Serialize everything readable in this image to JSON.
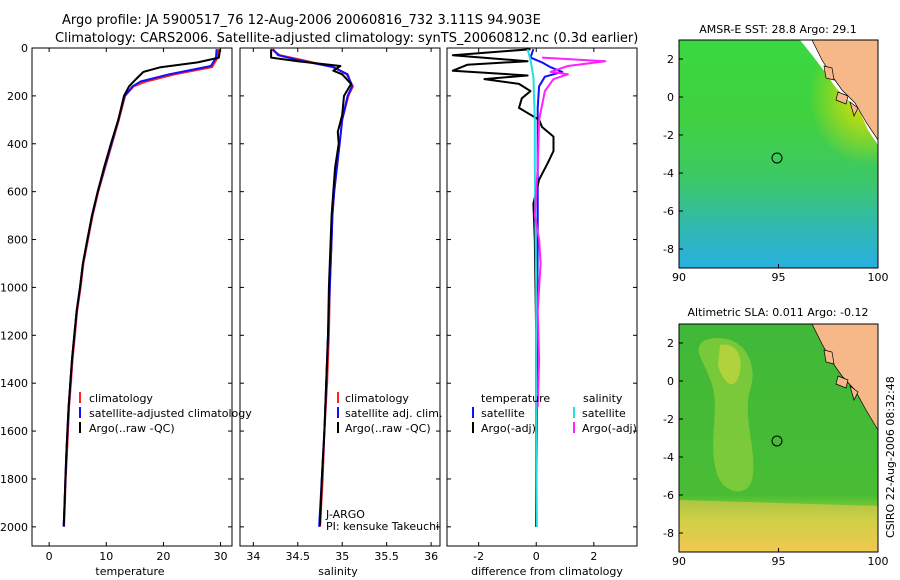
{
  "header": {
    "line1": "Argo profile: JA 5900517_76 12-Aug-2006 20060816_732 3.111S 94.903E",
    "line2": "Climatology: CARS2006. Satellite-adjusted climatology: synTS_20060812.nc (0.3d earlier)"
  },
  "side_label": "CSIRO 22-Aug-2006 08:32:48",
  "chart_data": [
    {
      "id": "temperature",
      "type": "line",
      "xlabel": "temperature",
      "ylabel": "",
      "xlim": [
        -3,
        32
      ],
      "ylim": [
        2080,
        0
      ],
      "xticks": [
        0,
        10,
        20,
        30
      ],
      "yticks": [
        0,
        200,
        400,
        600,
        800,
        1000,
        1200,
        1400,
        1600,
        1800,
        2000
      ],
      "legend": {
        "placement": "lower-right",
        "entries": [
          "climatology",
          "satellite-adjusted climatology",
          "Argo(..raw -QC)"
        ]
      },
      "series": [
        {
          "name": "climatology",
          "color": "#ff2020",
          "points": [
            [
              29.6,
              5
            ],
            [
              29.5,
              40
            ],
            [
              28.5,
              80
            ],
            [
              22,
              110
            ],
            [
              17,
              140
            ],
            [
              14.8,
              160
            ],
            [
              13.3,
              200
            ],
            [
              12.2,
              300
            ],
            [
              11,
              400
            ],
            [
              9.8,
              500
            ],
            [
              8.6,
              600
            ],
            [
              7.6,
              700
            ],
            [
              6.8,
              800
            ],
            [
              6,
              900
            ],
            [
              5.5,
              1000
            ],
            [
              4.9,
              1100
            ],
            [
              4.5,
              1200
            ],
            [
              4.1,
              1300
            ],
            [
              3.8,
              1400
            ],
            [
              3.5,
              1500
            ],
            [
              3.3,
              1600
            ],
            [
              3.1,
              1700
            ],
            [
              2.9,
              1800
            ],
            [
              2.75,
              1900
            ],
            [
              2.6,
              2000
            ]
          ]
        },
        {
          "name": "satellite-adjusted climatology",
          "color": "#1010ff",
          "points": [
            [
              29.3,
              5
            ],
            [
              29.2,
              40
            ],
            [
              28.3,
              75
            ],
            [
              21,
              110
            ],
            [
              16,
              140
            ],
            [
              14.6,
              160
            ],
            [
              13.2,
              200
            ],
            [
              12.1,
              300
            ],
            [
              10.9,
              400
            ],
            [
              9.7,
              500
            ],
            [
              8.5,
              600
            ],
            [
              7.5,
              700
            ],
            [
              6.7,
              800
            ],
            [
              5.9,
              900
            ],
            [
              5.4,
              1000
            ],
            [
              4.8,
              1100
            ],
            [
              4.4,
              1200
            ],
            [
              4,
              1300
            ],
            [
              3.7,
              1400
            ],
            [
              3.4,
              1500
            ],
            [
              3.2,
              1600
            ],
            [
              3,
              1700
            ],
            [
              2.85,
              1800
            ],
            [
              2.7,
              1900
            ],
            [
              2.55,
              2000
            ]
          ]
        },
        {
          "name": "Argo(..raw -QC)",
          "color": "#000000",
          "points": [
            [
              29.9,
              5
            ],
            [
              29.7,
              40
            ],
            [
              26,
              60
            ],
            [
              19.5,
              80
            ],
            [
              16.5,
              100
            ],
            [
              15.2,
              130
            ],
            [
              14,
              160
            ],
            [
              13.1,
              200
            ],
            [
              12.1,
              300
            ],
            [
              10.8,
              400
            ],
            [
              9.6,
              500
            ],
            [
              8.5,
              600
            ],
            [
              7.5,
              700
            ],
            [
              6.7,
              800
            ],
            [
              5.9,
              900
            ],
            [
              5.4,
              1000
            ],
            [
              4.8,
              1100
            ],
            [
              4.4,
              1200
            ],
            [
              4,
              1300
            ],
            [
              3.7,
              1400
            ],
            [
              3.4,
              1500
            ],
            [
              3.2,
              1600
            ],
            [
              3,
              1700
            ],
            [
              2.85,
              1800
            ],
            [
              2.7,
              1900
            ],
            [
              2.55,
              1995
            ]
          ]
        }
      ]
    },
    {
      "id": "salinity",
      "type": "line",
      "xlabel": "salinity",
      "xlim": [
        33.85,
        36.1
      ],
      "ylim": [
        2080,
        0
      ],
      "xticks": [
        34,
        34.5,
        35,
        35.5,
        36
      ],
      "yticks": [
        0,
        200,
        400,
        600,
        800,
        1000,
        1200,
        1400,
        1600,
        1800,
        2000
      ],
      "legend": {
        "placement": "lower-right",
        "entries": [
          "climatology",
          "satellite adj. clim.",
          "Argo(..raw -QC)"
        ]
      },
      "annotations": [
        "J-ARGO",
        "PI: kensuke Takeuchi"
      ],
      "series": [
        {
          "name": "climatology",
          "color": "#ff2020",
          "points": [
            [
              34.2,
              5
            ],
            [
              34.3,
              30
            ],
            [
              34.55,
              50
            ],
            [
              34.9,
              80
            ],
            [
              35.05,
              110
            ],
            [
              35.12,
              160
            ],
            [
              35.07,
              200
            ],
            [
              35.0,
              300
            ],
            [
              34.97,
              400
            ],
            [
              34.94,
              500
            ],
            [
              34.91,
              600
            ],
            [
              34.89,
              700
            ],
            [
              34.88,
              800
            ],
            [
              34.87,
              900
            ],
            [
              34.86,
              1000
            ],
            [
              34.85,
              1200
            ],
            [
              34.83,
              1400
            ],
            [
              34.8,
              1600
            ],
            [
              34.78,
              1800
            ],
            [
              34.75,
              2000
            ]
          ]
        },
        {
          "name": "satellite adj. clim.",
          "color": "#1010ff",
          "points": [
            [
              34.22,
              5
            ],
            [
              34.28,
              30
            ],
            [
              34.5,
              50
            ],
            [
              34.9,
              80
            ],
            [
              35.06,
              110
            ],
            [
              35.11,
              160
            ],
            [
              35.06,
              200
            ],
            [
              35.0,
              300
            ],
            [
              34.97,
              400
            ],
            [
              34.94,
              500
            ],
            [
              34.91,
              600
            ],
            [
              34.89,
              700
            ],
            [
              34.88,
              800
            ],
            [
              34.87,
              900
            ],
            [
              34.86,
              1000
            ],
            [
              34.84,
              1200
            ],
            [
              34.82,
              1400
            ],
            [
              34.8,
              1600
            ],
            [
              34.77,
              1800
            ],
            [
              34.74,
              2000
            ]
          ]
        },
        {
          "name": "Argo(..raw -QC)",
          "color": "#000000",
          "points": [
            [
              34.2,
              5
            ],
            [
              34.2,
              40
            ],
            [
              34.5,
              55
            ],
            [
              34.98,
              75
            ],
            [
              34.9,
              95
            ],
            [
              35.0,
              110
            ],
            [
              35.1,
              150
            ],
            [
              35.02,
              200
            ],
            [
              35.0,
              280
            ],
            [
              34.95,
              350
            ],
            [
              34.96,
              400
            ],
            [
              34.92,
              500
            ],
            [
              34.9,
              600
            ],
            [
              34.88,
              700
            ],
            [
              34.87,
              800
            ],
            [
              34.86,
              900
            ],
            [
              34.85,
              1000
            ],
            [
              34.84,
              1200
            ],
            [
              34.82,
              1400
            ],
            [
              34.8,
              1600
            ],
            [
              34.77,
              1800
            ],
            [
              34.75,
              1995
            ]
          ]
        }
      ]
    },
    {
      "id": "difference",
      "type": "line",
      "xlabel": "difference from climatology",
      "xlim": [
        -3.1,
        3.5
      ],
      "ylim": [
        2080,
        0
      ],
      "xticks": [
        -2,
        0,
        2
      ],
      "yticks": [
        0,
        200,
        400,
        600,
        800,
        1000,
        1200,
        1400,
        1600,
        1800,
        2000
      ],
      "legend": {
        "placement": "lower-center",
        "groups": [
          {
            "title": "temperature",
            "entries": [
              "satellite",
              "Argo(-adj)"
            ]
          },
          {
            "title": "salinity",
            "entries": [
              "satellite",
              "Argo(-adj)"
            ]
          }
        ]
      },
      "series": [
        {
          "name": "temperature satellite",
          "color": "#1010ff",
          "points": [
            [
              -0.1,
              5
            ],
            [
              -0.2,
              40
            ],
            [
              0.2,
              60
            ],
            [
              0.5,
              80
            ],
            [
              0.9,
              100
            ],
            [
              0.3,
              120
            ],
            [
              0.1,
              160
            ],
            [
              0.05,
              250
            ],
            [
              0.05,
              400
            ],
            [
              0.05,
              800
            ],
            [
              0.03,
              1200
            ],
            [
              0.02,
              1600
            ],
            [
              0.0,
              2000
            ]
          ]
        },
        {
          "name": "temperature Argo(-adj)",
          "color": "#000000",
          "points": [
            [
              -0.2,
              5
            ],
            [
              -2.9,
              30
            ],
            [
              -0.3,
              55
            ],
            [
              -2.4,
              70
            ],
            [
              -2.9,
              95
            ],
            [
              -0.3,
              115
            ],
            [
              -1.8,
              130
            ],
            [
              -0.6,
              150
            ],
            [
              -0.2,
              180
            ],
            [
              -0.5,
              210
            ],
            [
              -0.6,
              250
            ],
            [
              0.1,
              300
            ],
            [
              0.2,
              330
            ],
            [
              0.6,
              370
            ],
            [
              0.6,
              430
            ],
            [
              0.4,
              480
            ],
            [
              0.1,
              550
            ],
            [
              -0.1,
              650
            ],
            [
              -0.05,
              800
            ],
            [
              0.0,
              1200
            ],
            [
              0.0,
              1600
            ],
            [
              0.0,
              2000
            ]
          ]
        },
        {
          "name": "salinity satellite",
          "color": "#20e0e0",
          "points": [
            [
              -0.3,
              5
            ],
            [
              -0.2,
              50
            ],
            [
              -0.1,
              120
            ],
            [
              -0.05,
              300
            ],
            [
              -0.05,
              500
            ],
            [
              0.0,
              1000
            ],
            [
              0.0,
              1500
            ],
            [
              0.02,
              2000
            ]
          ]
        },
        {
          "name": "salinity Argo(-adj)",
          "color": "#ff20ff",
          "points": [
            [
              0.2,
              40
            ],
            [
              2.4,
              55
            ],
            [
              1.1,
              75
            ],
            [
              0.5,
              100
            ],
            [
              1.1,
              110
            ],
            [
              0.6,
              130
            ],
            [
              0.3,
              180
            ],
            [
              0.1,
              300
            ],
            [
              0.05,
              500
            ],
            [
              -0.05,
              700
            ],
            [
              0.1,
              800
            ],
            [
              0.15,
              900
            ],
            [
              0.05,
              1100
            ],
            [
              0.1,
              1300
            ],
            [
              0.05,
              1500
            ]
          ]
        }
      ]
    },
    {
      "id": "sst_map",
      "type": "heatmap",
      "title": "AMSR-E SST: 28.8 Argo: 29.1",
      "xlim": [
        90,
        100
      ],
      "ylim": [
        -9,
        3
      ],
      "xticks": [
        90,
        95,
        100
      ],
      "yticks": [
        2,
        0,
        -2,
        -4,
        -6,
        -8
      ],
      "marker": {
        "lon": 94.9,
        "lat": -3.1
      },
      "palette": {
        "low": "#30b0d8",
        "mid": "#40d040",
        "high": "#e8e000",
        "land": "#f7b889"
      }
    },
    {
      "id": "sla_map",
      "type": "heatmap",
      "title": "Altimetric SLA: 0.011 Argo: -0.12",
      "xlim": [
        90,
        100
      ],
      "ylim": [
        -9,
        3
      ],
      "xticks": [
        90,
        95,
        100
      ],
      "yticks": [
        2,
        0,
        -2,
        -4,
        -6,
        -8
      ],
      "marker": {
        "lon": 94.9,
        "lat": -3.1
      },
      "palette": {
        "low": "#38b040",
        "mid": "#60c830",
        "high": "#f0d040",
        "land": "#f7b889"
      }
    }
  ]
}
